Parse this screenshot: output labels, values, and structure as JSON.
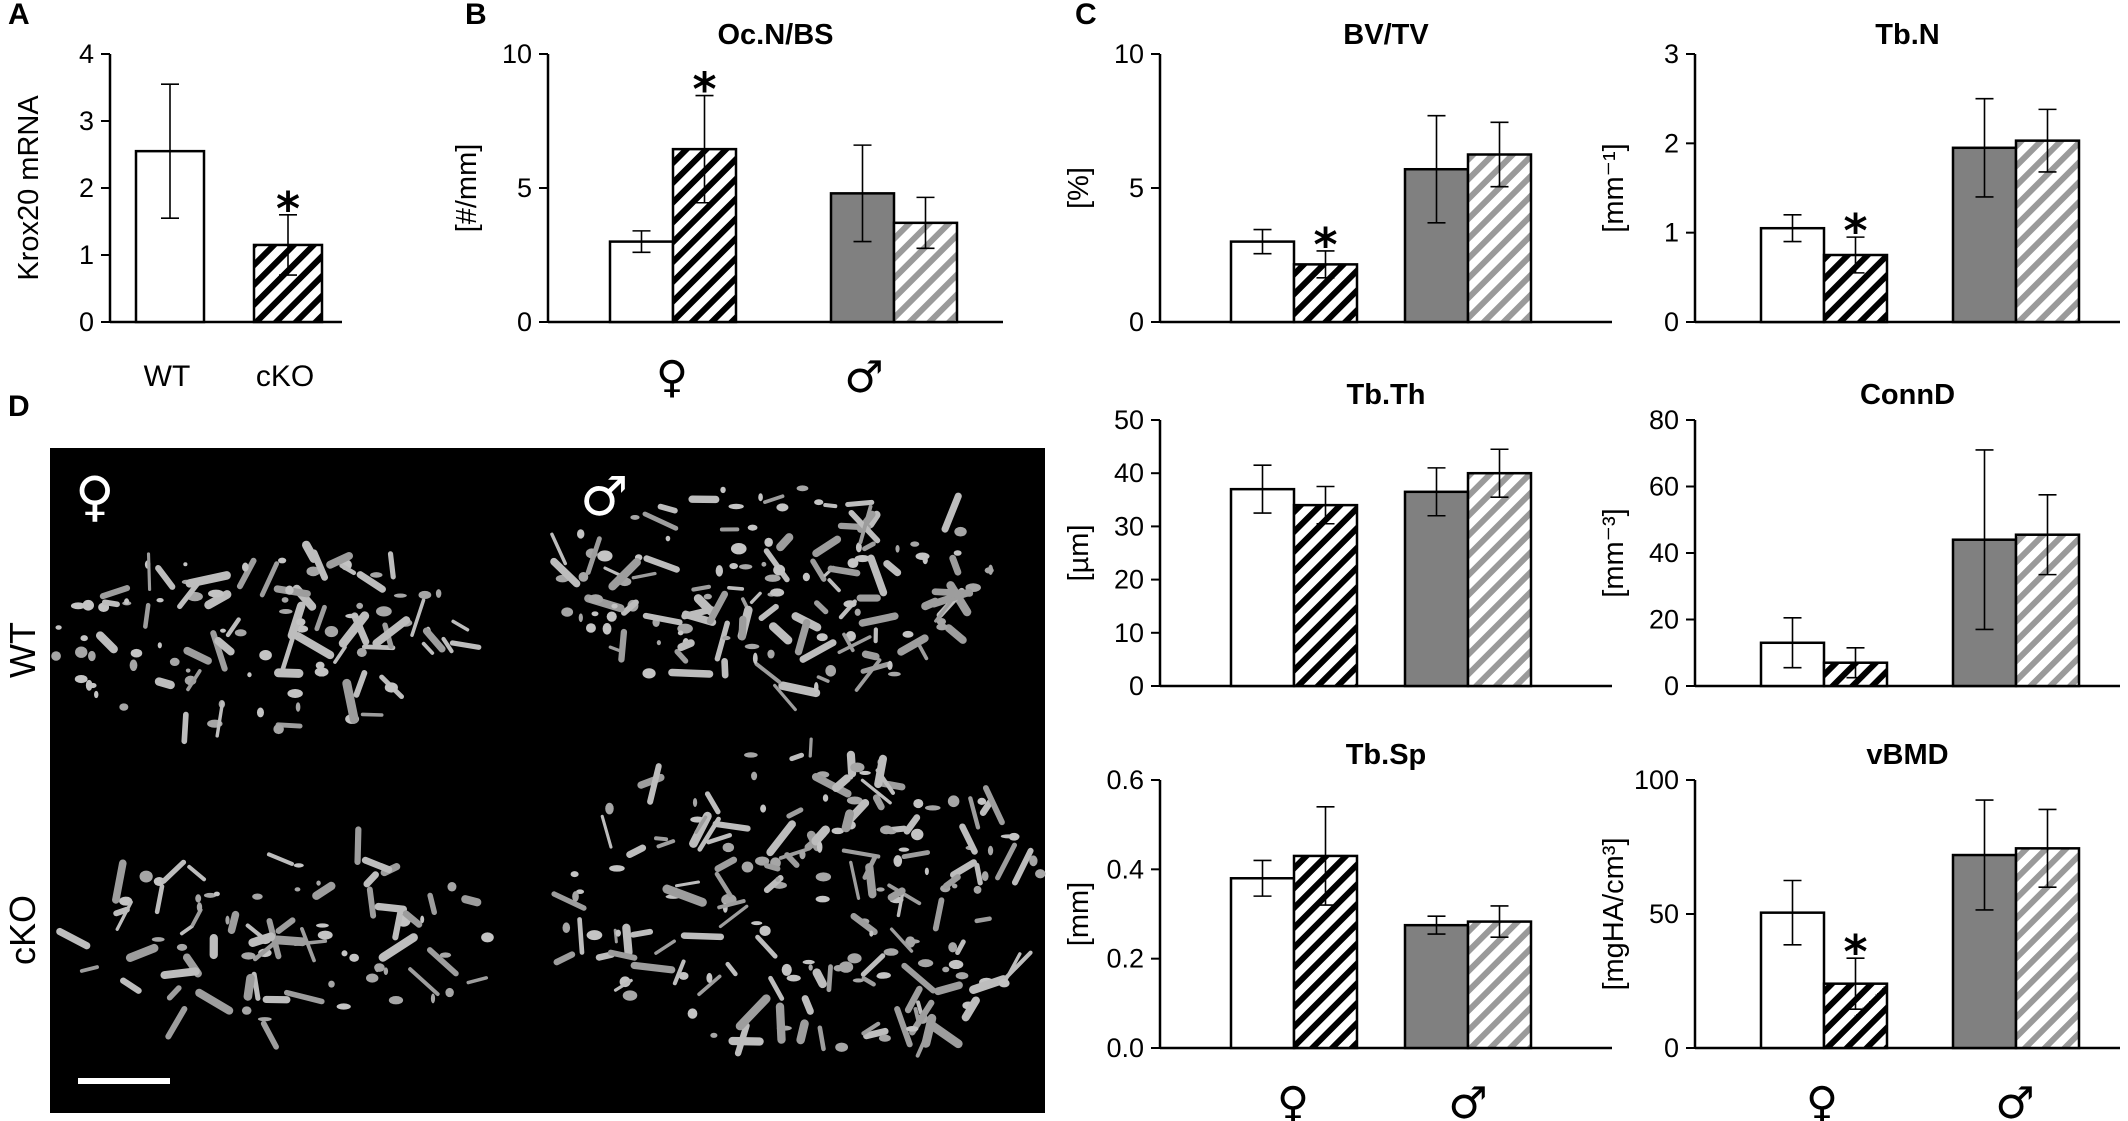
{
  "panel_labels": [
    "A",
    "B",
    "C",
    "D"
  ],
  "chart_data": [
    {
      "id": "krox20",
      "panel": "A",
      "type": "bar",
      "title": "",
      "ylabel": "Krox20 mRNA",
      "ylim": [
        0,
        4
      ],
      "yticks": [
        "0",
        "1",
        "2",
        "3",
        "4"
      ],
      "categories": [
        "WT",
        "cKO"
      ],
      "bars": [
        {
          "value": 2.55,
          "error": 1.0,
          "style": "wt-female"
        },
        {
          "value": 1.15,
          "error": 0.45,
          "style": "ko-female",
          "star": "*"
        }
      ]
    },
    {
      "id": "ocn",
      "panel": "B",
      "type": "bar",
      "title": "Oc.N/BS",
      "ylabel": "[#/mm]",
      "ylim": [
        0,
        10
      ],
      "yticks": [
        "0",
        "5",
        "10"
      ],
      "categories": [
        "♀",
        "♂"
      ],
      "bars": [
        {
          "value": 3.0,
          "error": 0.4,
          "style": "wt-female"
        },
        {
          "value": 6.45,
          "error": 2.0,
          "style": "ko-female",
          "star": "*"
        },
        {
          "value": 4.8,
          "error": 1.8,
          "style": "wt-male"
        },
        {
          "value": 3.7,
          "error": 0.95,
          "style": "ko-male"
        }
      ]
    },
    {
      "id": "bvtv",
      "panel": "C",
      "type": "bar",
      "title": "BV/TV",
      "ylabel": "[%]",
      "ylim": [
        0,
        10
      ],
      "yticks": [
        "0",
        "5",
        "10"
      ],
      "categories": [],
      "bars": [
        {
          "value": 3.0,
          "error": 0.45,
          "style": "wt-female"
        },
        {
          "value": 2.15,
          "error": 0.5,
          "style": "ko-female",
          "star": "*"
        },
        {
          "value": 5.7,
          "error": 2.0,
          "style": "wt-male"
        },
        {
          "value": 6.25,
          "error": 1.2,
          "style": "ko-male"
        }
      ]
    },
    {
      "id": "tbn",
      "type": "bar",
      "title": "Tb.N",
      "ylabel": "[mm⁻¹]",
      "ylim": [
        0,
        3
      ],
      "yticks": [
        "0",
        "1",
        "2",
        "3"
      ],
      "categories": [],
      "bars": [
        {
          "value": 1.05,
          "error": 0.15,
          "style": "wt-female"
        },
        {
          "value": 0.75,
          "error": 0.2,
          "style": "ko-female",
          "star": "*"
        },
        {
          "value": 1.95,
          "error": 0.55,
          "style": "wt-male"
        },
        {
          "value": 2.03,
          "error": 0.35,
          "style": "ko-male"
        }
      ]
    },
    {
      "id": "tbth",
      "type": "bar",
      "title": "Tb.Th",
      "ylabel": "[µm]",
      "ylim": [
        0,
        50
      ],
      "yticks": [
        "0",
        "10",
        "20",
        "30",
        "40",
        "50"
      ],
      "categories": [],
      "bars": [
        {
          "value": 37,
          "error": 4.5,
          "style": "wt-female"
        },
        {
          "value": 34,
          "error": 3.5,
          "style": "ko-female"
        },
        {
          "value": 36.5,
          "error": 4.5,
          "style": "wt-male"
        },
        {
          "value": 40,
          "error": 4.5,
          "style": "ko-male"
        }
      ]
    },
    {
      "id": "connd",
      "type": "bar",
      "title": "ConnD",
      "ylabel": "[mm⁻³]",
      "ylim": [
        0,
        80
      ],
      "yticks": [
        "0",
        "20",
        "40",
        "60",
        "80"
      ],
      "categories": [],
      "bars": [
        {
          "value": 13,
          "error": 7.5,
          "style": "wt-female"
        },
        {
          "value": 7,
          "error": 4.5,
          "style": "ko-female"
        },
        {
          "value": 44,
          "error": 27,
          "style": "wt-male"
        },
        {
          "value": 45.5,
          "error": 12,
          "style": "ko-male"
        }
      ]
    },
    {
      "id": "tbsp",
      "type": "bar",
      "title": "Tb.Sp",
      "ylabel": "[mm]",
      "ylim": [
        0,
        0.6
      ],
      "yticks": [
        "0.0",
        "0.2",
        "0.4",
        "0.6"
      ],
      "categories": [
        "♀",
        "♂"
      ],
      "bars": [
        {
          "value": 0.38,
          "error": 0.04,
          "style": "wt-female"
        },
        {
          "value": 0.43,
          "error": 0.11,
          "style": "ko-female"
        },
        {
          "value": 0.275,
          "error": 0.02,
          "style": "wt-male"
        },
        {
          "value": 0.283,
          "error": 0.035,
          "style": "ko-male"
        }
      ]
    },
    {
      "id": "vbmd",
      "type": "bar",
      "title": "vBMD",
      "ylabel": "[mgHA/cm³]",
      "ylim": [
        0,
        100
      ],
      "yticks": [
        "0",
        "50",
        "100"
      ],
      "categories": [
        "♀",
        "♂"
      ],
      "bars": [
        {
          "value": 50.5,
          "error": 12,
          "style": "wt-female"
        },
        {
          "value": 24,
          "error": 9.5,
          "style": "ko-female",
          "star": "*"
        },
        {
          "value": 72,
          "error": 20.5,
          "style": "wt-male"
        },
        {
          "value": 74.5,
          "error": 14.5,
          "style": "ko-male"
        }
      ]
    }
  ],
  "micrograph": {
    "panel": "D",
    "row_labels": [
      "WT",
      "cKO"
    ],
    "column_sex_symbols": [
      "♀",
      "♂"
    ]
  },
  "colors": {
    "black": "#000000",
    "white": "#ffffff",
    "male_fill": "#808080",
    "male_hatch": "#9a9a9a",
    "background_dark": "#000000",
    "bone": "#b8b8b8"
  }
}
